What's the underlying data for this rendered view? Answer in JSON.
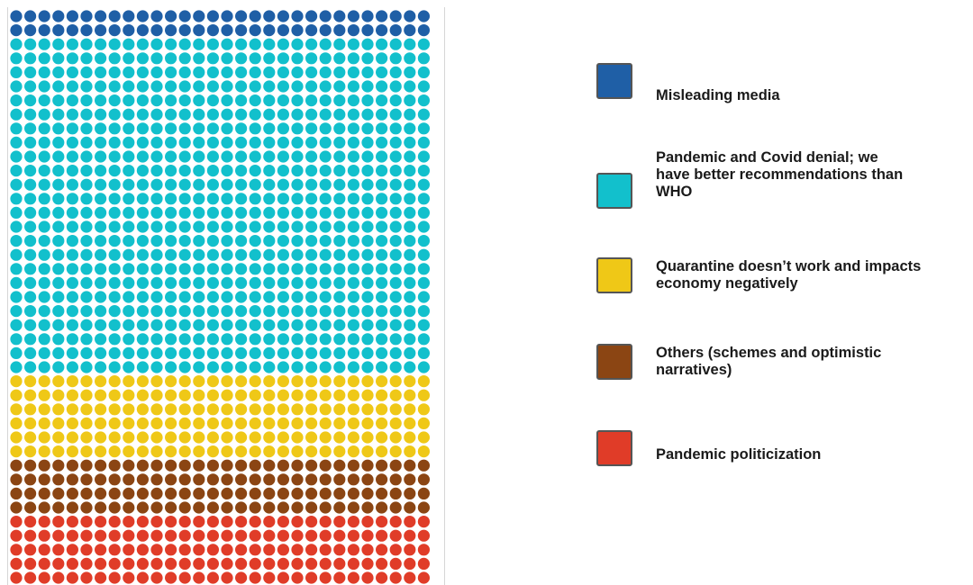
{
  "chart_data": {
    "type": "waffle",
    "grid": {
      "columns": 30,
      "rows": 41,
      "total": 1230
    },
    "series": [
      {
        "name": "Misleading media",
        "count": 60,
        "color": "#1f5fa6"
      },
      {
        "name": "Pandemic and Covid denial; we have better recommendations than WHO",
        "count": 720,
        "color": "#12c0cc"
      },
      {
        "name": "Quarantine doesn’t work and impacts economy negatively",
        "count": 180,
        "color": "#efc817"
      },
      {
        "name": "Others (schemes and optimistic narratives)",
        "count": 120,
        "color": "#8b4513"
      },
      {
        "name": "Pandemic politicization",
        "count": 150,
        "color": "#e03c28"
      }
    ],
    "legend_position": "right"
  },
  "legend": {
    "items": [
      {
        "label": "Misleading media",
        "color": "#1f5fa6"
      },
      {
        "label": "Pandemic and Covid denial; we\nhave better recommendations than\nWHO",
        "color": "#12c0cc"
      },
      {
        "label": "Quarantine doesn’t work and impacts\neconomy negatively",
        "color": "#efc817"
      },
      {
        "label": "Others (schemes and optimistic\nnarratives)",
        "color": "#8b4513"
      },
      {
        "label": "Pandemic politicization",
        "color": "#e03c28"
      }
    ]
  }
}
